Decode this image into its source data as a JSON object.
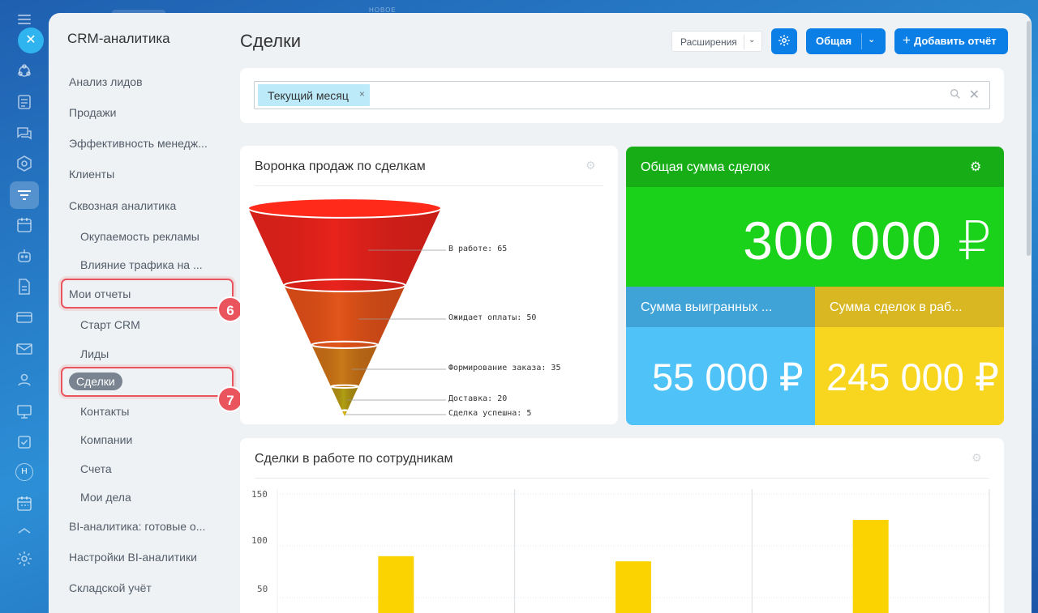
{
  "top_strip_label": "НОВОЕ",
  "rail": {
    "close_glyph": "✕",
    "avatar_letter": "Н",
    "icons": [
      "network-icon",
      "document-icon",
      "chat-icon",
      "cube-icon",
      "funnel-icon",
      "calendar-icon",
      "robot-icon",
      "file-icon",
      "card-icon",
      "mail-icon",
      "contacts-icon",
      "presentation-icon",
      "checkbox-icon",
      "avatar",
      "calendar-grid-icon",
      "collapse-icon",
      "settings-icon"
    ]
  },
  "sidebar": {
    "title": "CRM-аналитика",
    "items": [
      {
        "label": "Анализ лидов"
      },
      {
        "label": "Продажи"
      },
      {
        "label": "Эффективность менедж..."
      },
      {
        "label": "Клиенты"
      },
      {
        "label": "Сквозная аналитика"
      },
      {
        "label": "Окупаемость рекламы"
      },
      {
        "label": "Влияние трафика на ..."
      },
      {
        "label": "Мои отчеты"
      },
      {
        "label": "Старт CRM"
      },
      {
        "label": "Лиды"
      },
      {
        "label": "Сделки"
      },
      {
        "label": "Контакты"
      },
      {
        "label": "Компании"
      },
      {
        "label": "Счета"
      },
      {
        "label": "Мои дела"
      },
      {
        "label": "BI-аналитика: готовые о..."
      },
      {
        "label": "Настройки BI-аналитики"
      },
      {
        "label": "Складской учёт"
      }
    ],
    "callouts": [
      "6",
      "7"
    ]
  },
  "header": {
    "title": "Сделки",
    "extensions_label": "Расширения",
    "general_label": "Общая",
    "add_report_label": "Добавить отчёт"
  },
  "filter": {
    "chip_label": "Текущий месяц",
    "chip_remove": "×",
    "clear": "✕"
  },
  "funnel_card": {
    "title": "Воронка продаж по сделкам"
  },
  "chart_data": [
    {
      "type": "funnel",
      "title": "Воронка продаж по сделкам",
      "categories": [
        "В работе",
        "Ожидает оплаты",
        "Формирование заказа",
        "Доставка",
        "Сделка успешна"
      ],
      "values": [
        65,
        50,
        35,
        20,
        5
      ],
      "labels": [
        "В работе: 65",
        "Ожидает оплаты: 50",
        "Формирование заказа: 35",
        "Доставка: 20",
        "Сделка успешна: 5"
      ],
      "colors": [
        "#e8231c",
        "#e2561a",
        "#c97a18",
        "#b0a014",
        "#d8c010"
      ]
    },
    {
      "type": "bar",
      "title": "Сделки в работе по сотрудникам",
      "categories": [
        "",
        "",
        ""
      ],
      "values": [
        90,
        85,
        125
      ],
      "ylim": [
        0,
        150
      ],
      "yticks": [
        50,
        100,
        150
      ],
      "grid": true,
      "color": "#fad300"
    }
  ],
  "kpi": {
    "total_title": "Общая сумма сделок",
    "total_value": "300 000 ₽",
    "won_title": "Сумма выигранных ...",
    "won_value": "55 000 ₽",
    "inwork_title": "Сумма сделок в раб...",
    "inwork_value": "245 000 ₽",
    "colors": {
      "green": "#19d219",
      "blue": "#4fc3f7",
      "yellow": "#f8d61f"
    }
  },
  "bar_card": {
    "title": "Сделки в работе по сотрудникам",
    "ticks": [
      "150",
      "100",
      "50"
    ]
  },
  "colors": {
    "accent": "#0b7fe6",
    "callout": "#e9545d",
    "panel": "#eef2f4"
  }
}
